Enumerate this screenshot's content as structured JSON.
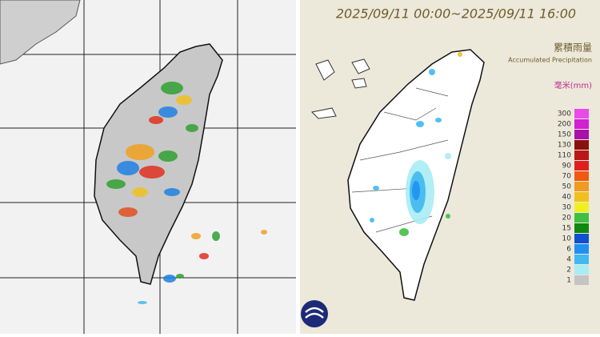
{
  "right_map": {
    "title": "2025/09/11 00:00~2025/09/11 16:00",
    "legend_title_zh": "累積雨量",
    "legend_title_en": "Accumulated Precipitation",
    "legend_unit": "毫米(mm)",
    "legend": [
      {
        "label": "300",
        "color": "#e84ce8"
      },
      {
        "label": "200",
        "color": "#d020d0"
      },
      {
        "label": "150",
        "color": "#a810a8"
      },
      {
        "label": "130",
        "color": "#8a1010"
      },
      {
        "label": "110",
        "color": "#b81818"
      },
      {
        "label": "90",
        "color": "#e02020"
      },
      {
        "label": "70",
        "color": "#f05a10"
      },
      {
        "label": "50",
        "color": "#f09a20"
      },
      {
        "label": "40",
        "color": "#f0c020"
      },
      {
        "label": "30",
        "color": "#f0f020"
      },
      {
        "label": "20",
        "color": "#40c040"
      },
      {
        "label": "15",
        "color": "#108810"
      },
      {
        "label": "10",
        "color": "#1050d0"
      },
      {
        "label": "6",
        "color": "#2090f0"
      },
      {
        "label": "4",
        "color": "#40b8f0"
      },
      {
        "label": "2",
        "color": "#a8ecf4"
      },
      {
        "label": "1",
        "color": "#c4c4c4"
      }
    ]
  }
}
